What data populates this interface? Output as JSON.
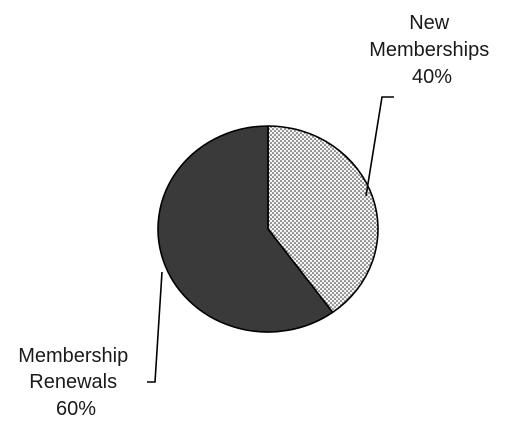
{
  "chart_data": {
    "type": "pie",
    "start_angle_deg": 0,
    "direction": "clockwise",
    "slices": [
      {
        "name_lines": [
          "New",
          "Memberships"
        ],
        "value": 40,
        "value_label": "40%",
        "fill": "#f2f2f2",
        "pattern": "dotted"
      },
      {
        "name_lines": [
          "Membership",
          "Renewals"
        ],
        "value": 60,
        "value_label": "60%",
        "fill": "#3a3a3a",
        "pattern": "solid"
      }
    ]
  }
}
